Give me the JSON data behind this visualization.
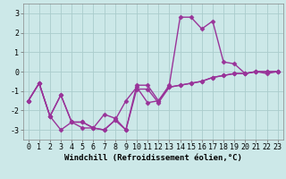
{
  "xlabel": "Windchill (Refroidissement éolien,°C)",
  "x": [
    0,
    1,
    2,
    3,
    4,
    5,
    6,
    7,
    8,
    9,
    10,
    11,
    12,
    13,
    14,
    15,
    16,
    17,
    18,
    19,
    20,
    21,
    22,
    23
  ],
  "line1": [
    -1.5,
    -0.6,
    -2.3,
    -1.2,
    -2.6,
    -2.6,
    -2.9,
    -2.2,
    -2.4,
    -3.0,
    -0.7,
    -0.7,
    -1.5,
    -0.7,
    2.8,
    2.8,
    2.2,
    2.6,
    0.5,
    0.4,
    -0.1,
    0.0,
    -0.1,
    0.0
  ],
  "line2": [
    -1.5,
    -0.6,
    -2.3,
    -3.0,
    -2.6,
    -2.9,
    -2.9,
    -3.0,
    -2.5,
    -1.5,
    -0.8,
    -1.6,
    -1.5,
    -0.8,
    -0.7,
    -0.6,
    -0.5,
    -0.3,
    -0.2,
    -0.1,
    -0.1,
    0.0,
    0.0,
    0.0
  ],
  "line3": [
    -1.5,
    -0.6,
    -2.3,
    -1.2,
    -2.6,
    -2.6,
    -2.9,
    -3.0,
    -2.5,
    -3.0,
    -0.9,
    -0.9,
    -1.6,
    -0.8,
    -0.7,
    -0.6,
    -0.5,
    -0.3,
    -0.2,
    -0.1,
    -0.1,
    0.0,
    0.0,
    0.0
  ],
  "line_color": "#993399",
  "bg_color": "#cce8e8",
  "grid_color": "#aacccc",
  "ylim": [
    -3.5,
    3.5
  ],
  "yticks": [
    -3,
    -2,
    -1,
    0,
    1,
    2,
    3
  ],
  "xticks": [
    0,
    1,
    2,
    3,
    4,
    5,
    6,
    7,
    8,
    9,
    10,
    11,
    12,
    13,
    14,
    15,
    16,
    17,
    18,
    19,
    20,
    21,
    22,
    23
  ],
  "marker": "D",
  "marker_size": 2.5,
  "linewidth": 1.0,
  "xlabel_fontsize": 6.5,
  "tick_fontsize": 6
}
